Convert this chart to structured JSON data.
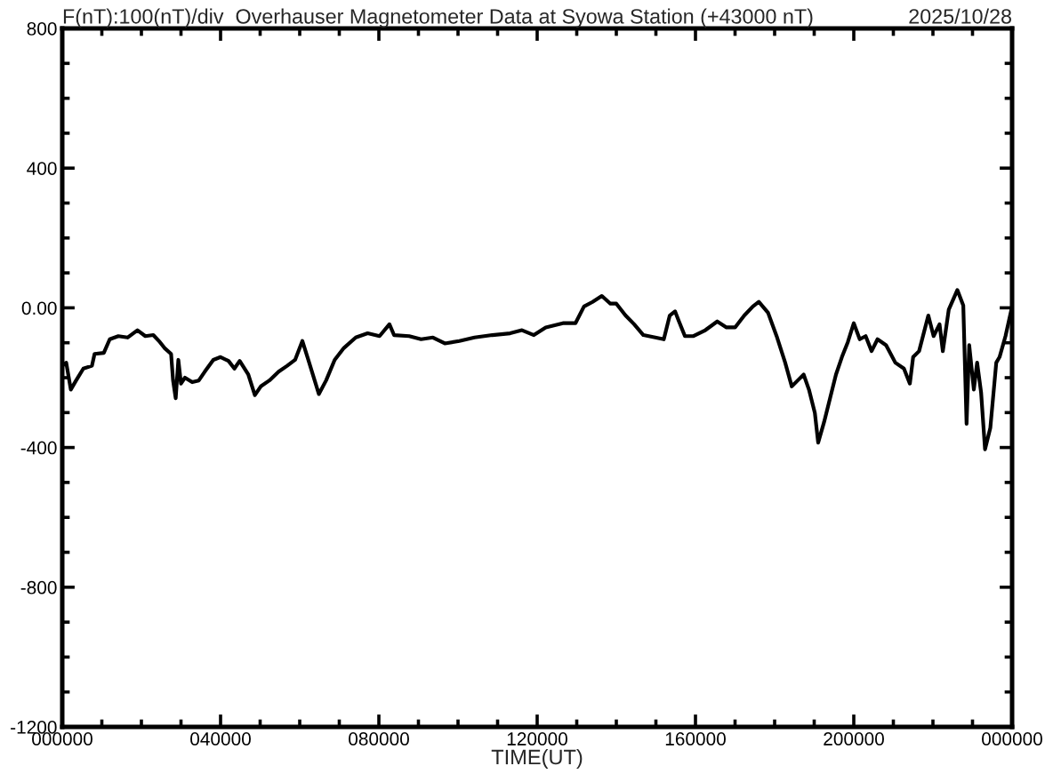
{
  "chart_data": {
    "type": "line",
    "title": "F(nT):100(nT)/div  Overhauser Magnetometer Data at Syowa Station (+43000 nT)",
    "subtitle": "2025/10/28",
    "xlabel": "TIME(UT)",
    "x": [
      "2025-10-28T00:00",
      "2025-10-28T00:06",
      "2025-10-28T00:13",
      "2025-10-28T00:21",
      "2025-10-28T00:32",
      "2025-10-28T00:45",
      "2025-10-28T00:49",
      "2025-10-28T01:03",
      "2025-10-28T01:12",
      "2025-10-28T01:25",
      "2025-10-28T01:39",
      "2025-10-28T01:54",
      "2025-10-28T02:06",
      "2025-10-28T02:18",
      "2025-10-28T02:28",
      "2025-10-28T02:35",
      "2025-10-28T02:45",
      "2025-10-28T02:48",
      "2025-10-28T02:52",
      "2025-10-28T02:56",
      "2025-10-28T03:00",
      "2025-10-28T03:06",
      "2025-10-28T03:17",
      "2025-10-28T03:27",
      "2025-10-28T03:36",
      "2025-10-28T03:49",
      "2025-10-28T04:00",
      "2025-10-28T04:12",
      "2025-10-28T04:21",
      "2025-10-28T04:29",
      "2025-10-28T04:42",
      "2025-10-28T04:52",
      "2025-10-28T05:01",
      "2025-10-28T05:14",
      "2025-10-28T05:28",
      "2025-10-28T05:41",
      "2025-10-28T05:53",
      "2025-10-28T06:04",
      "2025-10-28T06:13",
      "2025-10-28T06:29",
      "2025-10-28T06:40",
      "2025-10-28T06:53",
      "2025-10-28T07:07",
      "2025-10-28T07:25",
      "2025-10-28T07:43",
      "2025-10-28T08:01",
      "2025-10-28T08:16",
      "2025-10-28T08:23",
      "2025-10-28T08:46",
      "2025-10-28T09:04",
      "2025-10-28T09:22",
      "2025-10-28T09:40",
      "2025-10-28T10:02",
      "2025-10-28T10:25",
      "2025-10-28T10:52",
      "2025-10-28T11:19",
      "2025-10-28T11:37",
      "2025-10-28T11:55",
      "2025-10-28T12:13",
      "2025-10-28T12:39",
      "2025-10-28T12:58",
      "2025-10-28T13:11",
      "2025-10-28T13:24",
      "2025-10-28T13:38",
      "2025-10-28T13:51",
      "2025-10-28T14:00",
      "2025-10-28T14:14",
      "2025-10-28T14:27",
      "2025-10-28T14:41",
      "2025-10-28T14:59",
      "2025-10-28T15:12",
      "2025-10-28T15:21",
      "2025-10-28T15:29",
      "2025-10-28T15:35",
      "2025-10-28T15:44",
      "2025-10-28T15:57",
      "2025-10-28T16:15",
      "2025-10-28T16:33",
      "2025-10-28T16:47",
      "2025-10-28T17:00",
      "2025-10-28T17:14",
      "2025-10-28T17:27",
      "2025-10-28T17:36",
      "2025-10-28T17:50",
      "2025-10-28T18:03",
      "2025-10-28T18:16",
      "2025-10-28T18:26",
      "2025-10-28T18:35",
      "2025-10-28T18:44",
      "2025-10-28T18:52",
      "2025-10-28T19:01",
      "2025-10-28T19:06",
      "2025-10-28T19:15",
      "2025-10-28T19:24",
      "2025-10-28T19:33",
      "2025-10-28T19:42",
      "2025-10-28T19:51",
      "2025-10-28T20:00",
      "2025-10-28T20:09",
      "2025-10-28T20:18",
      "2025-10-28T20:27",
      "2025-10-28T20:36",
      "2025-10-28T20:49",
      "2025-10-28T21:03",
      "2025-10-28T21:16",
      "2025-10-28T21:25",
      "2025-10-28T21:30",
      "2025-10-28T21:39",
      "2025-10-28T21:53",
      "2025-10-28T22:01",
      "2025-10-28T22:10",
      "2025-10-28T22:15",
      "2025-10-28T22:24",
      "2025-10-28T22:37",
      "2025-10-28T22:46",
      "2025-10-28T22:51",
      "2025-10-28T22:55",
      "2025-10-28T23:02",
      "2025-10-28T23:07",
      "2025-10-28T23:13",
      "2025-10-28T23:19",
      "2025-10-28T23:27",
      "2025-10-28T23:36",
      "2025-10-28T23:41",
      "2025-10-28T23:50",
      "2025-10-29T00:00"
    ],
    "series": [
      {
        "color": "#000000",
        "values": [
          -166,
          -157,
          -234,
          -208,
          -174,
          -166,
          -132,
          -129,
          -90,
          -81,
          -85,
          -64,
          -81,
          -78,
          -98,
          -115,
          -132,
          -208,
          -259,
          -149,
          -217,
          -200,
          -213,
          -208,
          -183,
          -149,
          -141,
          -152,
          -174,
          -152,
          -191,
          -250,
          -225,
          -208,
          -183,
          -166,
          -149,
          -95,
          -149,
          -247,
          -208,
          -149,
          -115,
          -85,
          -73,
          -81,
          -47,
          -78,
          -81,
          -90,
          -85,
          -102,
          -95,
          -85,
          -78,
          -73,
          -64,
          -78,
          -56,
          -44,
          -44,
          4,
          17,
          34,
          12,
          12,
          -22,
          -47,
          -78,
          -85,
          -90,
          -22,
          -10,
          -39,
          -81,
          -81,
          -64,
          -39,
          -56,
          -56,
          -22,
          4,
          17,
          -14,
          -81,
          -157,
          -225,
          -208,
          -191,
          -234,
          -301,
          -386,
          -327,
          -259,
          -191,
          -141,
          -98,
          -44,
          -90,
          -81,
          -124,
          -90,
          -107,
          -157,
          -174,
          -217,
          -141,
          -124,
          -22,
          -81,
          -47,
          -124,
          -5,
          51,
          7,
          -332,
          -107,
          -234,
          -157,
          -242,
          -405,
          -344,
          -157,
          -141,
          -81,
          4
        ]
      }
    ],
    "xlim": [
      "2025-10-28T00:00",
      "2025-10-29T00:00"
    ],
    "xticks": [
      {
        "value": "2025-10-28T00:00",
        "label": "000000"
      },
      {
        "value": "2025-10-28T01:00",
        "label": null
      },
      {
        "value": "2025-10-28T02:00",
        "label": null
      },
      {
        "value": "2025-10-28T03:00",
        "label": null
      },
      {
        "value": "2025-10-28T04:00",
        "label": "040000"
      },
      {
        "value": "2025-10-28T05:00",
        "label": null
      },
      {
        "value": "2025-10-28T06:00",
        "label": null
      },
      {
        "value": "2025-10-28T07:00",
        "label": null
      },
      {
        "value": "2025-10-28T08:00",
        "label": "080000"
      },
      {
        "value": "2025-10-28T09:00",
        "label": null
      },
      {
        "value": "2025-10-28T10:00",
        "label": null
      },
      {
        "value": "2025-10-28T11:00",
        "label": null
      },
      {
        "value": "2025-10-28T12:00",
        "label": "120000"
      },
      {
        "value": "2025-10-28T13:00",
        "label": null
      },
      {
        "value": "2025-10-28T14:00",
        "label": null
      },
      {
        "value": "2025-10-28T15:00",
        "label": null
      },
      {
        "value": "2025-10-28T16:00",
        "label": "160000"
      },
      {
        "value": "2025-10-28T17:00",
        "label": null
      },
      {
        "value": "2025-10-28T18:00",
        "label": null
      },
      {
        "value": "2025-10-28T19:00",
        "label": null
      },
      {
        "value": "2025-10-28T20:00",
        "label": "200000"
      },
      {
        "value": "2025-10-28T21:00",
        "label": null
      },
      {
        "value": "2025-10-28T22:00",
        "label": null
      },
      {
        "value": "2025-10-28T23:00",
        "label": null
      },
      {
        "value": "2025-10-29T00:00",
        "label": "000000"
      }
    ],
    "ylim": [
      -1200,
      800
    ],
    "yticks": [
      -1200,
      {
        "value": -1100,
        "label": null
      },
      {
        "value": -1000,
        "label": null
      },
      {
        "value": -900,
        "label": null
      },
      -800,
      {
        "value": -700,
        "label": null
      },
      {
        "value": -600,
        "label": null
      },
      {
        "value": -500,
        "label": null
      },
      -400,
      {
        "value": -300,
        "label": null
      },
      {
        "value": -200,
        "label": null
      },
      {
        "value": -100,
        "label": null
      },
      {
        "value": 0,
        "label": "0.00"
      },
      {
        "value": 100,
        "label": null
      },
      {
        "value": 200,
        "label": null
      },
      {
        "value": 300,
        "label": null
      },
      400,
      {
        "value": 500,
        "label": null
      },
      {
        "value": 600,
        "label": null
      },
      {
        "value": 700,
        "label": null
      },
      800
    ],
    "line_style": "solid"
  }
}
